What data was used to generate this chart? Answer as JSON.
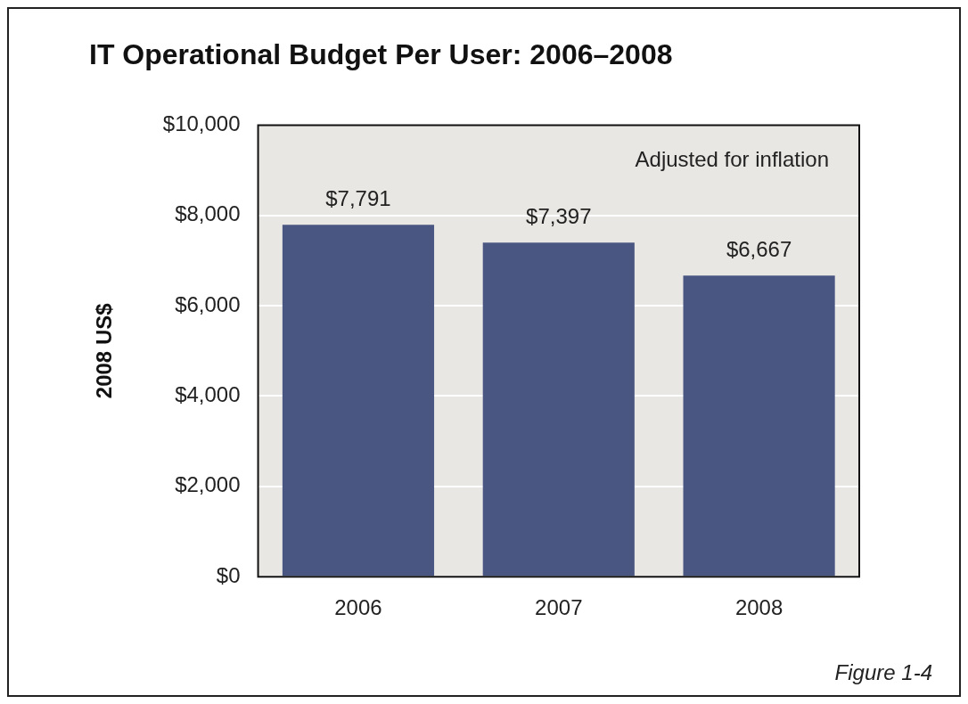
{
  "chart_data": {
    "type": "bar",
    "title": "IT Operational Budget Per User: 2006–2008",
    "ylabel": "2008 US$",
    "categories": [
      "2006",
      "2007",
      "2008"
    ],
    "values": [
      7791,
      7397,
      6667
    ],
    "value_labels": [
      "$7,791",
      "$7,397",
      "$6,667"
    ],
    "color": "#4a5682",
    "ylim": [
      0,
      10000
    ],
    "yticks": [
      {
        "value": 0,
        "label": "$0"
      },
      {
        "value": 2000,
        "label": "$2,000"
      },
      {
        "value": 4000,
        "label": "$4,000"
      },
      {
        "value": 6000,
        "label": "$6,000"
      },
      {
        "value": 8000,
        "label": "$8,000"
      },
      {
        "value": 10000,
        "label": "$10,000"
      }
    ],
    "grid": "y",
    "legend": false,
    "annotations": [
      "Adjusted for inflation",
      "Figure 1-4"
    ]
  }
}
